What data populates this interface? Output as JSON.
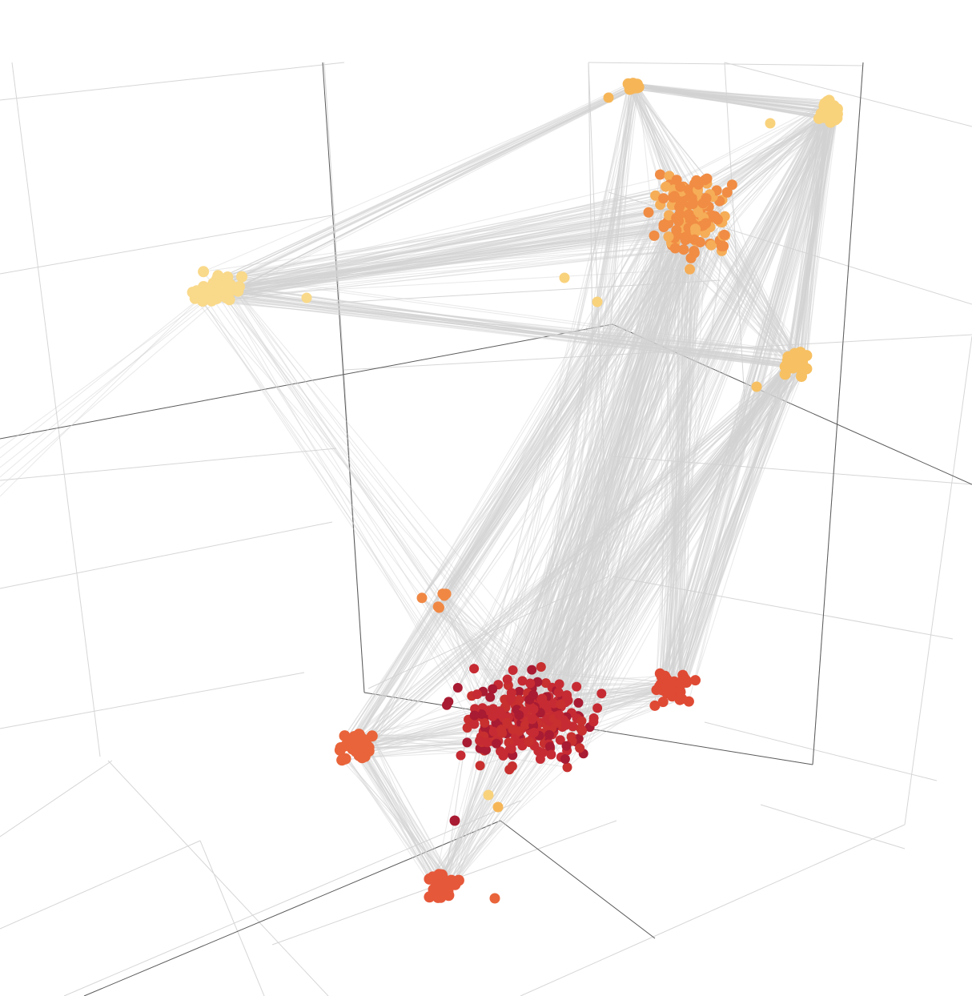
{
  "chart_data": {
    "type": "scatter",
    "subtype": "3d-network-graph",
    "title": "",
    "xlabel": "",
    "ylabel": "",
    "zlabel": "",
    "grid": true,
    "legend": "none",
    "edge_color": "#d3d3d3",
    "background": "#ffffff",
    "color_scale": [
      "#fde08a",
      "#f9c46a",
      "#f6ad57",
      "#f28a45",
      "#ea6a3a",
      "#de4a34",
      "#c7302f",
      "#a81b32"
    ],
    "clusters": [
      {
        "id": "c1",
        "color": "#f9d98a",
        "nodes": 40
      },
      {
        "id": "c2",
        "color": "#f6b658",
        "nodes": 14
      },
      {
        "id": "c3",
        "color": "#f9d27c",
        "nodes": 32
      },
      {
        "id": "c4",
        "color": "#f08c44",
        "nodes": 150
      },
      {
        "id": "c5",
        "color": "#f7c062",
        "nodes": 30
      },
      {
        "id": "c6",
        "color": "#f08844",
        "nodes": 6
      },
      {
        "id": "c7",
        "color": "#e9643a",
        "nodes": 38
      },
      {
        "id": "c8",
        "color": "#c62b33",
        "nodes": 260
      },
      {
        "id": "c9",
        "color": "#df4a34",
        "nodes": 40
      },
      {
        "id": "c10",
        "color": "#e6583a",
        "nodes": 38
      }
    ]
  }
}
